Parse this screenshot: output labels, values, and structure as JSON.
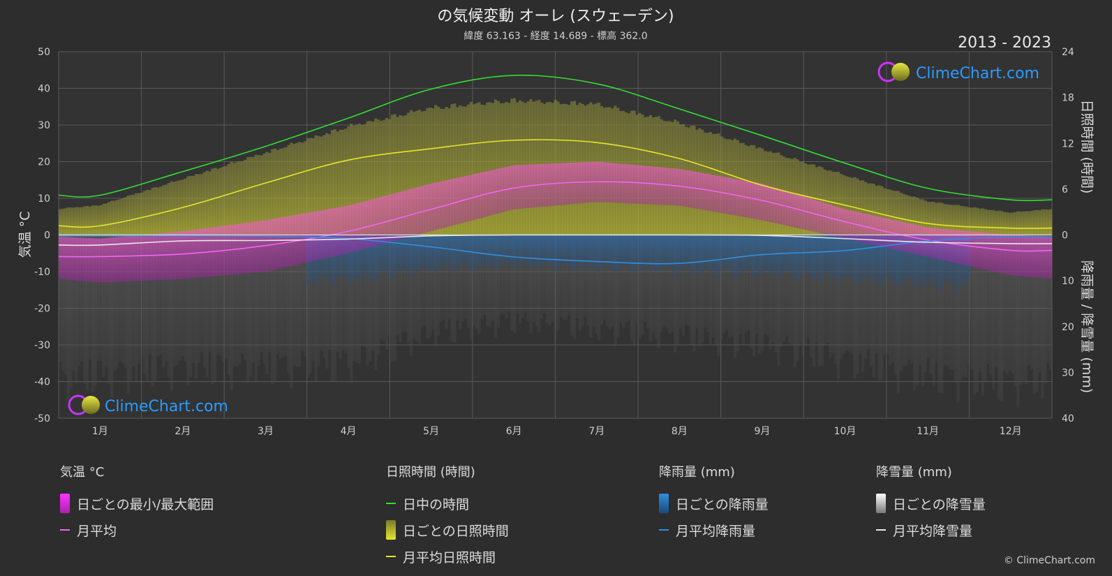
{
  "title": "の気候変動 オーレ (スウェーデン)",
  "subtitle": "緯度 63.163 - 経度 14.689 - 標高 362.0",
  "year_range": "2013 - 2023",
  "brand": "ClimeChart.com",
  "copyright": "© ClimeChart.com",
  "colors": {
    "background": "#2d2d2d",
    "daylight": "#33dd33",
    "sunshine_avg": "#e6e62a",
    "temp_avg": "#ee66ee",
    "rain_avg": "#2f8fe0",
    "snow_avg": "#e8e8e8",
    "brand_text": "#2b9bff"
  },
  "chart_data": {
    "type": "line",
    "categories": [
      "1月",
      "2月",
      "3月",
      "4月",
      "5月",
      "6月",
      "7月",
      "8月",
      "9月",
      "10月",
      "11月",
      "12月"
    ],
    "left_axis": {
      "label": "気温 °C",
      "ticks": [
        50,
        40,
        30,
        20,
        10,
        0,
        -10,
        -20,
        -30,
        -40,
        -50
      ],
      "range": [
        -50,
        50
      ]
    },
    "right_axis_top": {
      "label": "日照時間 (時間)",
      "ticks": [
        24,
        18,
        12,
        6,
        0
      ],
      "range": [
        0,
        24
      ]
    },
    "right_axis_bottom": {
      "label": "降雨量 / 降雪量 (mm)",
      "ticks": [
        10,
        20,
        30,
        40
      ],
      "range": [
        0,
        40
      ]
    },
    "grid": true,
    "series": [
      {
        "name": "日中の時間",
        "axis": "sunshine",
        "values": [
          5.2,
          8.3,
          11.6,
          15.3,
          19.1,
          20.9,
          19.8,
          16.5,
          13.0,
          9.4,
          6.1,
          4.6
        ]
      },
      {
        "name": "月平均日照時間",
        "axis": "sunshine",
        "values": [
          1.2,
          3.6,
          6.8,
          9.8,
          11.3,
          12.4,
          12.1,
          10.0,
          6.5,
          3.9,
          1.5,
          0.9
        ]
      },
      {
        "name": "月平均",
        "axis": "temperature",
        "values": [
          -5.9,
          -5.2,
          -2.9,
          1.0,
          7.0,
          12.8,
          14.5,
          13.3,
          9.4,
          3.6,
          -1.4,
          -4.2
        ]
      },
      {
        "name": "月平均降雨量",
        "axis": "precipitation",
        "values": [
          0.2,
          0.2,
          0.3,
          0.8,
          2.6,
          4.8,
          5.8,
          6.2,
          4.3,
          3.4,
          1.3,
          0.4
        ]
      },
      {
        "name": "月平均降雪量",
        "axis": "precipitation",
        "values": [
          2.2,
          1.3,
          1.2,
          0.9,
          0.2,
          0.0,
          0.0,
          0.0,
          0.1,
          0.8,
          1.6,
          1.9
        ]
      }
    ],
    "daily_temp_range": {
      "min": [
        -13,
        -12,
        -10,
        -5,
        1,
        7,
        9,
        8,
        4,
        -1,
        -6,
        -11
      ],
      "max": [
        -1,
        1,
        4,
        8,
        14,
        19,
        20,
        18,
        14,
        7,
        2,
        0
      ]
    },
    "daily_sunshine_max": [
      4.0,
      7.5,
      11.0,
      14.5,
      17.0,
      18.0,
      17.5,
      15.0,
      11.5,
      8.0,
      4.5,
      3.0
    ],
    "daily_precip_max": [
      36,
      34,
      34,
      33,
      25,
      22,
      24,
      26,
      28,
      32,
      36,
      38
    ]
  },
  "legend": {
    "temperature": {
      "header": "気温 °C",
      "range_label": "日ごとの最小/最大範囲",
      "avg_label": "月平均"
    },
    "sunshine": {
      "header": "日照時間 (時間)",
      "daylight_label": "日中の時間",
      "daily_label": "日ごとの日照時間",
      "avg_label": "月平均日照時間"
    },
    "rain": {
      "header": "降雨量 (mm)",
      "daily_label": "日ごとの降雨量",
      "avg_label": "月平均降雨量"
    },
    "snow": {
      "header": "降雪量 (mm)",
      "daily_label": "日ごとの降雪量",
      "avg_label": "月平均降雪量"
    }
  }
}
